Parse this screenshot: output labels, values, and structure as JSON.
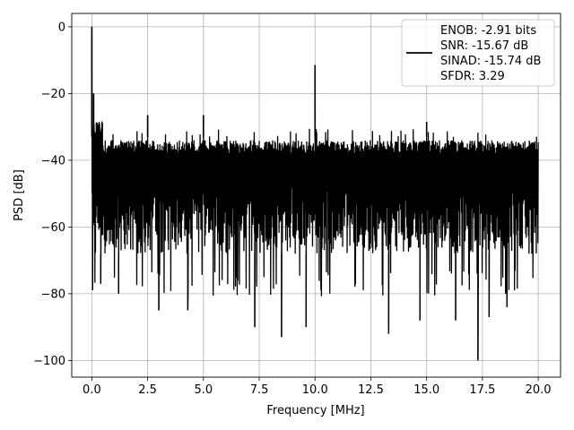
{
  "chart_data": {
    "type": "line",
    "title": "",
    "xlabel": "Frequency [MHz]",
    "ylabel": "PSD [dB]",
    "xlim": [
      -0.9,
      21.0
    ],
    "ylim": [
      -105,
      4
    ],
    "x_ticks": [
      0.0,
      2.5,
      5.0,
      7.5,
      10.0,
      12.5,
      15.0,
      17.5,
      20.0
    ],
    "x_tick_labels": [
      "0.0",
      "2.5",
      "5.0",
      "7.5",
      "10.0",
      "12.5",
      "15.0",
      "17.5",
      "20.0"
    ],
    "y_ticks": [
      0,
      -20,
      -40,
      -60,
      -80,
      -100
    ],
    "y_tick_labels": [
      "0",
      "−20",
      "−40",
      "−60",
      "−80",
      "−100"
    ],
    "grid": true,
    "legend_position": "top-right",
    "series": [
      {
        "color": "#000000",
        "legend_lines": [
          "ENOB: -2.91 bits",
          "SNR: -15.67 dB",
          "SINAD: -15.74 dB",
          "SFDR: 3.29"
        ],
        "noise_floor_top_db": -33,
        "noise_floor_bottom_db": -68,
        "x_range": [
          0.0,
          20.0
        ],
        "peaks": [
          {
            "x": 0.0,
            "y": 0
          },
          {
            "x": 0.08,
            "y": -20
          },
          {
            "x": 2.5,
            "y": -26.5
          },
          {
            "x": 5.0,
            "y": -26.5
          },
          {
            "x": 10.0,
            "y": -11.5
          },
          {
            "x": 15.0,
            "y": -28.5
          }
        ],
        "dips": [
          {
            "x": 0.4,
            "y": -77
          },
          {
            "x": 1.2,
            "y": -80
          },
          {
            "x": 3.0,
            "y": -85
          },
          {
            "x": 4.3,
            "y": -85
          },
          {
            "x": 7.3,
            "y": -90
          },
          {
            "x": 8.5,
            "y": -93
          },
          {
            "x": 9.6,
            "y": -90
          },
          {
            "x": 13.3,
            "y": -92
          },
          {
            "x": 14.7,
            "y": -88
          },
          {
            "x": 16.3,
            "y": -88
          },
          {
            "x": 17.3,
            "y": -100
          },
          {
            "x": 17.8,
            "y": -87
          },
          {
            "x": 18.6,
            "y": -84
          }
        ]
      }
    ]
  }
}
